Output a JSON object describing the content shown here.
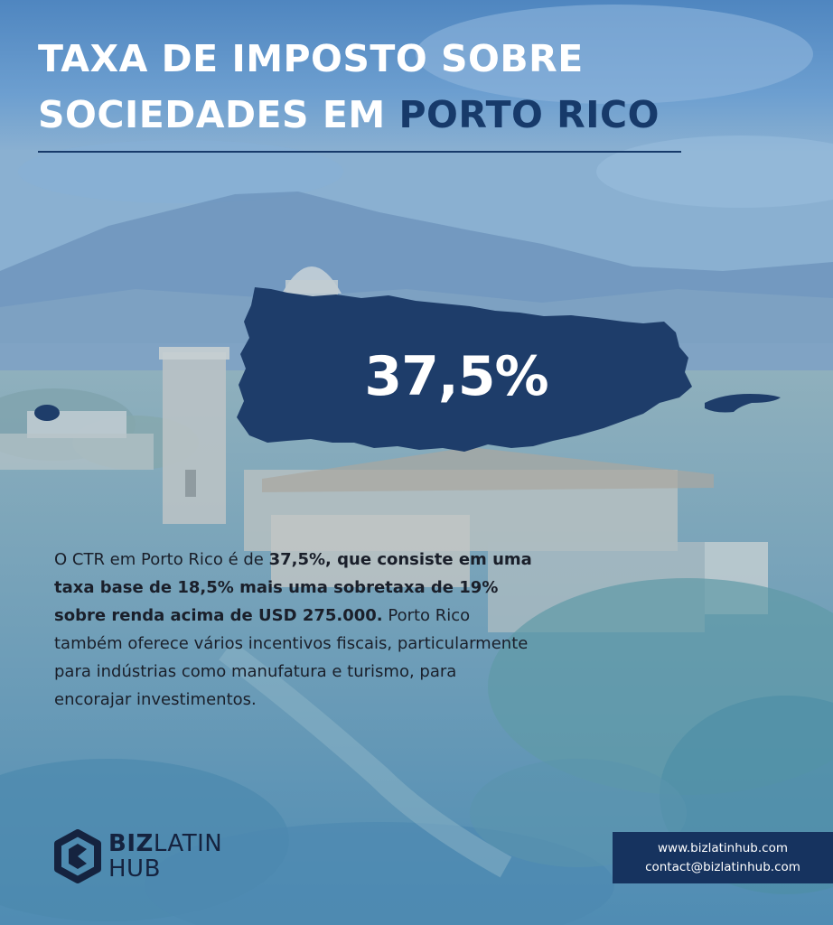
{
  "title": {
    "line1": "TAXA DE IMPOSTO SOBRE",
    "line2_prefix": "SOCIEDADES EM ",
    "line2_accent": "PORTO RICO"
  },
  "rate": "37,5%",
  "body": {
    "intro": "O CTR em Porto Rico é de ",
    "bold": "37,5%, que consiste em uma taxa base de 18,5% mais uma sobretaxa de 19% sobre renda acima de USD 275.000.",
    "rest": " Porto Rico também oferece vários incentivos fiscais, particularmente para indústrias como manufatura e turismo, para encorajar investimentos."
  },
  "logo": {
    "line1_bold": "BIZ",
    "line1_regular": "LATIN",
    "line2": "HUB"
  },
  "contact": {
    "website": "www.bizlatinhub.com",
    "email": "contact@bizlatinhub.com"
  },
  "colors": {
    "accent": "#173a6a",
    "island": "#1e3d6a",
    "contact_box": "#16335f"
  }
}
